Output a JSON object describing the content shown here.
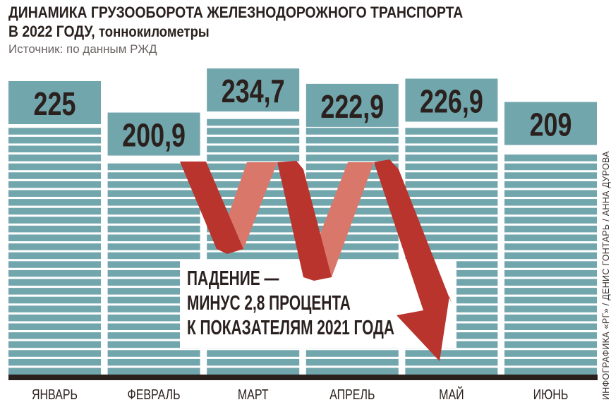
{
  "chart_data": {
    "type": "bar",
    "title": "ДИНАМИКА ГРУЗООБОРОТА ЖЕЛЕЗНОДОРОЖНОГО ТРАНСПОРТА",
    "title_line2": "В 2022 ГОДУ,",
    "unit": "тоннокилометры",
    "source": "Источник: по данным РЖД",
    "categories": [
      "ЯНВАРЬ",
      "ФЕВРАЛЬ",
      "МАРТ",
      "АПРЕЛЬ",
      "МАЙ",
      "ИЮНЬ"
    ],
    "values": [
      225,
      200.9,
      234.7,
      222.9,
      226.9,
      209
    ],
    "value_labels": [
      "225",
      "200,9",
      "234,7",
      "222,9",
      "226,9",
      "209"
    ],
    "ylim": [
      0,
      240
    ],
    "grid": false,
    "annotation": [
      "ПАДЕНИЕ —",
      "МИНУС 2,8 ПРОЦЕНТА",
      "К ПОКАЗАТЕЛЯМ 2021 ГОДА"
    ],
    "colors": {
      "bar": "#72a6ad",
      "text": "#2a211e",
      "arrow_dark": "#b8342c",
      "arrow_light": "#d9786a",
      "baseline": "#2a211e"
    }
  },
  "credit": "ИНФОГРАФИКА «РГ» / ДЕНИС ГОНТАРЬ / АННА ДУРОВА"
}
